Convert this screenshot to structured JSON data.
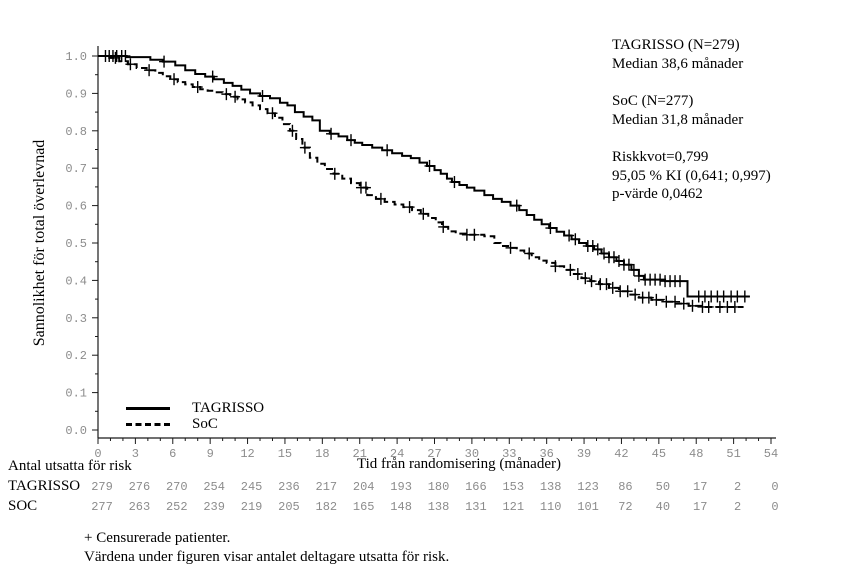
{
  "figure": {
    "y_axis_label": "Sannolikhet för total överlevnad",
    "x_axis_label": "Tid från randomisering (månader)",
    "annotation_lines": [
      "TAGRISSO (N=279)",
      "Median 38,6 månader",
      "SoC (N=277)",
      "Median 31,8 månader",
      "Riskkvot=0,799",
      "95,05 % KI (0,641; 0,997)",
      "p-värde 0,0462"
    ],
    "legend": [
      {
        "label": "TAGRISSO",
        "style": "solid"
      },
      {
        "label": "SoC",
        "style": "dashed"
      }
    ],
    "risk_table": {
      "title": "Antal utsatta för risk",
      "rows": [
        {
          "label": "TAGRISSO",
          "counts": [
            279,
            276,
            270,
            254,
            245,
            236,
            217,
            204,
            193,
            180,
            166,
            153,
            138,
            123,
            86,
            50,
            17,
            2,
            0
          ]
        },
        {
          "label": "SOC",
          "counts": [
            277,
            263,
            252,
            239,
            219,
            205,
            182,
            165,
            148,
            138,
            131,
            121,
            110,
            101,
            72,
            40,
            17,
            2,
            0
          ]
        }
      ]
    },
    "footnotes": [
      "+ Censurerade patienter.",
      "Värdena under figuren visar antalet deltagare utsatta för risk."
    ],
    "colors": {
      "curve": "#000000",
      "axis": "#1a1a1a",
      "tick_label": "#8c8c8c",
      "risk_number": "#8c8c8c",
      "text": "#000000"
    }
  },
  "chart_data": {
    "type": "line",
    "subtype": "kaplan-meier-step",
    "title": "",
    "xlabel": "Tid från randomisering (månader)",
    "ylabel": "Sannolikhet för total överlevnad",
    "xlim": [
      0,
      54
    ],
    "ylim": [
      0.0,
      1.0
    ],
    "xticks": [
      0,
      3,
      6,
      9,
      12,
      15,
      18,
      21,
      24,
      27,
      30,
      33,
      36,
      39,
      42,
      45,
      48,
      51,
      54
    ],
    "yticks": [
      0.0,
      0.1,
      0.2,
      0.3,
      0.4,
      0.5,
      0.6,
      0.7,
      0.8,
      0.9,
      1.0
    ],
    "grid": false,
    "legend_position": "lower-left",
    "stats": {
      "hazard_ratio": "0,799",
      "ci_label": "95,05 % KI (0,641; 0,997)",
      "p_value": "0,0462"
    },
    "series": [
      {
        "name": "TAGRISSO",
        "n": 279,
        "median_months": "38,6",
        "line": "solid",
        "steps": [
          [
            0,
            1.0
          ],
          [
            2.3,
            0.997
          ],
          [
            4.2,
            0.99
          ],
          [
            5.2,
            0.985
          ],
          [
            6.2,
            0.975
          ],
          [
            7.0,
            0.962
          ],
          [
            7.8,
            0.952
          ],
          [
            8.6,
            0.945
          ],
          [
            9.3,
            0.938
          ],
          [
            10.1,
            0.928
          ],
          [
            10.8,
            0.92
          ],
          [
            11.5,
            0.91
          ],
          [
            12.2,
            0.9
          ],
          [
            13.0,
            0.893
          ],
          [
            13.8,
            0.887
          ],
          [
            14.6,
            0.875
          ],
          [
            15.2,
            0.868
          ],
          [
            15.8,
            0.85
          ],
          [
            16.5,
            0.838
          ],
          [
            17.2,
            0.828
          ],
          [
            17.8,
            0.8
          ],
          [
            18.6,
            0.792
          ],
          [
            19.3,
            0.785
          ],
          [
            20.0,
            0.775
          ],
          [
            20.6,
            0.768
          ],
          [
            21.2,
            0.762
          ],
          [
            22.0,
            0.755
          ],
          [
            22.8,
            0.748
          ],
          [
            23.6,
            0.74
          ],
          [
            24.4,
            0.733
          ],
          [
            25.1,
            0.727
          ],
          [
            25.8,
            0.715
          ],
          [
            26.4,
            0.706
          ],
          [
            27.0,
            0.695
          ],
          [
            27.5,
            0.685
          ],
          [
            28.0,
            0.672
          ],
          [
            28.4,
            0.663
          ],
          [
            29.0,
            0.655
          ],
          [
            29.6,
            0.648
          ],
          [
            30.2,
            0.64
          ],
          [
            31.0,
            0.628
          ],
          [
            31.7,
            0.618
          ],
          [
            32.4,
            0.61
          ],
          [
            33.1,
            0.6
          ],
          [
            33.8,
            0.588
          ],
          [
            34.4,
            0.575
          ],
          [
            35.0,
            0.562
          ],
          [
            35.6,
            0.55
          ],
          [
            36.2,
            0.54
          ],
          [
            36.8,
            0.53
          ],
          [
            37.4,
            0.52
          ],
          [
            38.0,
            0.51
          ],
          [
            38.6,
            0.5
          ],
          [
            39.2,
            0.492
          ],
          [
            39.8,
            0.483
          ],
          [
            40.4,
            0.472
          ],
          [
            41.0,
            0.462
          ],
          [
            41.6,
            0.452
          ],
          [
            42.2,
            0.442
          ],
          [
            42.8,
            0.428
          ],
          [
            43.4,
            0.412
          ],
          [
            43.8,
            0.402
          ],
          [
            45.5,
            0.398
          ],
          [
            47.3,
            0.357
          ],
          [
            52.3,
            0.357
          ]
        ],
        "censor_months": [
          0.6,
          0.9,
          1.2,
          1.5,
          1.9,
          2.2,
          5.3,
          9.2,
          13.2,
          18.7,
          20.3,
          23.2,
          26.6,
          28.6,
          33.6,
          36.3,
          37.8,
          38.3,
          39.3,
          39.7,
          40.1,
          40.6,
          41.0,
          41.4,
          41.8,
          42.2,
          42.6,
          43.0,
          43.4,
          43.9,
          44.3,
          44.7,
          45.1,
          45.5,
          45.9,
          46.3,
          46.7,
          48.2,
          48.7,
          49.2,
          49.7,
          50.2,
          50.8,
          51.3,
          51.9
        ]
      },
      {
        "name": "SoC",
        "n": 277,
        "median_months": "31,8",
        "line": "dashed",
        "steps": [
          [
            0,
            1.0
          ],
          [
            0.9,
            0.995
          ],
          [
            1.7,
            0.986
          ],
          [
            2.4,
            0.978
          ],
          [
            3.1,
            0.968
          ],
          [
            3.9,
            0.962
          ],
          [
            4.6,
            0.955
          ],
          [
            5.2,
            0.946
          ],
          [
            5.8,
            0.938
          ],
          [
            6.4,
            0.93
          ],
          [
            7.0,
            0.924
          ],
          [
            7.6,
            0.917
          ],
          [
            8.2,
            0.911
          ],
          [
            8.8,
            0.907
          ],
          [
            9.4,
            0.903
          ],
          [
            10.0,
            0.898
          ],
          [
            10.6,
            0.891
          ],
          [
            11.2,
            0.884
          ],
          [
            11.8,
            0.876
          ],
          [
            12.4,
            0.868
          ],
          [
            13.0,
            0.858
          ],
          [
            13.6,
            0.847
          ],
          [
            14.2,
            0.835
          ],
          [
            14.8,
            0.818
          ],
          [
            15.4,
            0.8
          ],
          [
            15.9,
            0.778
          ],
          [
            16.4,
            0.755
          ],
          [
            17.0,
            0.728
          ],
          [
            17.6,
            0.712
          ],
          [
            18.2,
            0.698
          ],
          [
            18.9,
            0.685
          ],
          [
            19.6,
            0.672
          ],
          [
            20.3,
            0.66
          ],
          [
            21.0,
            0.648
          ],
          [
            21.6,
            0.628
          ],
          [
            22.3,
            0.618
          ],
          [
            23.0,
            0.61
          ],
          [
            23.8,
            0.603
          ],
          [
            24.5,
            0.596
          ],
          [
            25.2,
            0.588
          ],
          [
            25.9,
            0.578
          ],
          [
            26.5,
            0.567
          ],
          [
            27.1,
            0.555
          ],
          [
            27.6,
            0.543
          ],
          [
            28.1,
            0.531
          ],
          [
            28.7,
            0.525
          ],
          [
            29.5,
            0.522
          ],
          [
            31.0,
            0.518
          ],
          [
            31.8,
            0.5
          ],
          [
            32.3,
            0.492
          ],
          [
            33.0,
            0.487
          ],
          [
            33.6,
            0.48
          ],
          [
            34.2,
            0.472
          ],
          [
            34.8,
            0.462
          ],
          [
            35.4,
            0.453
          ],
          [
            36.0,
            0.447
          ],
          [
            36.7,
            0.438
          ],
          [
            37.4,
            0.428
          ],
          [
            38.1,
            0.417
          ],
          [
            38.8,
            0.406
          ],
          [
            39.5,
            0.398
          ],
          [
            40.2,
            0.39
          ],
          [
            41.0,
            0.38
          ],
          [
            41.8,
            0.371
          ],
          [
            42.6,
            0.362
          ],
          [
            43.4,
            0.354
          ],
          [
            44.4,
            0.348
          ],
          [
            45.4,
            0.343
          ],
          [
            46.4,
            0.338
          ],
          [
            47.4,
            0.332
          ],
          [
            48.4,
            0.329
          ],
          [
            51.8,
            0.329
          ]
        ],
        "censor_months": [
          1.4,
          2.6,
          4.1,
          6.1,
          8.0,
          10.3,
          11.0,
          14.0,
          15.6,
          16.6,
          19.0,
          21.1,
          21.5,
          22.7,
          25.0,
          26.1,
          27.7,
          29.6,
          30.2,
          33.1,
          34.6,
          36.7,
          37.9,
          38.5,
          39.1,
          39.6,
          40.3,
          40.8,
          41.3,
          41.9,
          42.5,
          43.1,
          43.7,
          44.2,
          44.8,
          45.6,
          46.3,
          47.0,
          47.7,
          48.5,
          49.0,
          49.9,
          50.5,
          51.1
        ]
      }
    ]
  }
}
